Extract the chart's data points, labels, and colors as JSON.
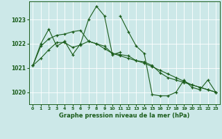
{
  "bg_color": "#cce8e8",
  "line_color": "#1a5c1a",
  "grid_color": "#ffffff",
  "xlabel": "Graphe pression niveau de la mer (hPa)",
  "ylim": [
    1019.5,
    1023.75
  ],
  "xlim": [
    -0.5,
    23.5
  ],
  "yticks": [
    1020,
    1021,
    1022,
    1023
  ],
  "xticks": [
    0,
    1,
    2,
    3,
    4,
    5,
    6,
    7,
    8,
    9,
    10,
    11,
    12,
    13,
    14,
    15,
    16,
    17,
    18,
    19,
    20,
    21,
    22,
    23
  ],
  "xtick_labels": [
    "0",
    "1",
    "2",
    "3",
    "4",
    "5",
    "6",
    "7",
    "8",
    "9",
    "10",
    "11",
    "12",
    "13",
    "14",
    "15",
    "16",
    "17",
    "18",
    "19",
    "20",
    "21",
    "22",
    "23"
  ],
  "series": [
    {
      "x": [
        0,
        1,
        2,
        3,
        4,
        5,
        6,
        7,
        8,
        9,
        10,
        11
      ],
      "y": [
        1021.1,
        1022.0,
        1022.6,
        1021.9,
        1022.1,
        1021.55,
        1022.0,
        1023.0,
        1023.55,
        1023.15,
        1021.55,
        1021.65
      ]
    },
    {
      "x": [
        11,
        12,
        13,
        14,
        15,
        16,
        17,
        18,
        19,
        20,
        21,
        22,
        23
      ],
      "y": [
        1023.15,
        1022.5,
        1021.9,
        1021.6,
        1019.9,
        1019.85,
        1019.85,
        1020.0,
        1020.5,
        1020.2,
        1020.1,
        1020.5,
        1020.0
      ]
    },
    {
      "x": [
        0,
        1,
        2,
        3,
        4,
        5,
        6,
        7,
        8,
        9,
        10,
        11,
        12,
        13,
        14,
        15,
        16,
        17,
        18,
        19,
        20,
        21,
        22,
        23
      ],
      "y": [
        1021.1,
        1021.9,
        1022.2,
        1022.35,
        1022.4,
        1022.5,
        1022.55,
        1022.1,
        1022.0,
        1021.8,
        1021.6,
        1021.5,
        1021.4,
        1021.3,
        1021.2,
        1021.05,
        1020.9,
        1020.75,
        1020.6,
        1020.45,
        1020.3,
        1020.2,
        1020.1,
        1020.0
      ]
    },
    {
      "x": [
        0,
        1,
        2,
        3,
        4,
        5,
        6,
        7,
        8,
        9,
        10,
        11,
        12,
        13,
        14,
        15,
        16,
        17,
        18,
        19,
        20,
        21,
        22,
        23
      ],
      "y": [
        1021.1,
        1021.4,
        1021.75,
        1022.05,
        1022.05,
        1021.85,
        1021.95,
        1022.1,
        1022.0,
        1021.9,
        1021.6,
        1021.55,
        1021.5,
        1021.3,
        1021.25,
        1021.1,
        1020.8,
        1020.6,
        1020.5,
        1020.4,
        1020.3,
        1020.2,
        1020.1,
        1020.0
      ]
    }
  ]
}
